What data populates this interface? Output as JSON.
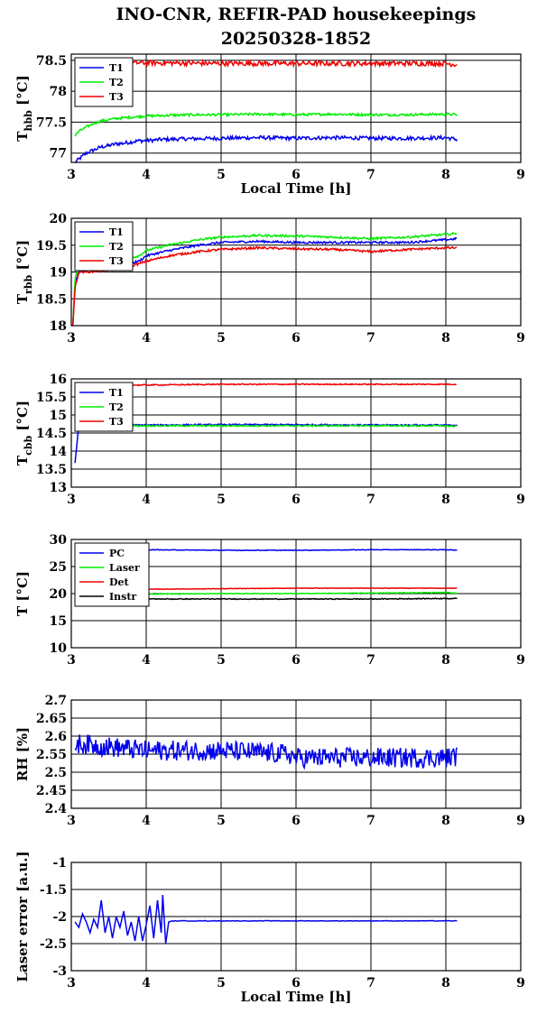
{
  "title": {
    "line1": "INO-CNR, REFIR-PAD housekeepings",
    "line2": "20250328-1852"
  },
  "chart_data": [
    {
      "type": "line",
      "ylabel": {
        "base": "T",
        "sub": "hbb",
        "unit": " [°C]"
      },
      "xlabel": "Local Time [h]",
      "xlim": [
        3,
        9
      ],
      "ylim": [
        76.85,
        78.6
      ],
      "xticks": [
        "3",
        "4",
        "5",
        "6",
        "7",
        "8",
        "9"
      ],
      "yticks": [
        {
          "v": 77,
          "label": "77"
        },
        {
          "v": 77.5,
          "label": "77.5"
        },
        {
          "v": 78,
          "label": "78"
        },
        {
          "v": 78.5,
          "label": "78.5"
        }
      ],
      "grid": true,
      "legend_position": "top-left",
      "series": [
        {
          "name": "T1",
          "color": "#0000ee",
          "x": [
            3.05,
            3.1,
            3.2,
            3.3,
            3.4,
            3.5,
            3.6,
            3.7,
            3.8,
            3.9,
            4.0,
            4.2,
            4.5,
            5.0,
            5.5,
            6.0,
            6.5,
            7.0,
            7.5,
            8.0,
            8.15
          ],
          "y": [
            76.85,
            76.9,
            77.0,
            77.05,
            77.1,
            77.12,
            77.15,
            77.16,
            77.18,
            77.2,
            77.2,
            77.22,
            77.23,
            77.24,
            77.25,
            77.24,
            77.25,
            77.24,
            77.24,
            77.25,
            77.22
          ],
          "noise": 0.03
        },
        {
          "name": "T2",
          "color": "#00ee00",
          "x": [
            3.05,
            3.1,
            3.2,
            3.3,
            3.4,
            3.5,
            3.6,
            3.7,
            3.8,
            4.0,
            4.3,
            4.6,
            5.0,
            5.5,
            6.0,
            6.5,
            7.0,
            7.5,
            8.0,
            8.15
          ],
          "y": [
            77.28,
            77.35,
            77.42,
            77.48,
            77.52,
            77.54,
            77.56,
            77.57,
            77.58,
            77.6,
            77.61,
            77.62,
            77.62,
            77.63,
            77.62,
            77.63,
            77.62,
            77.62,
            77.63,
            77.62
          ],
          "noise": 0.02
        },
        {
          "name": "T3",
          "color": "#ee0000",
          "x": [
            3.05,
            3.5,
            4.0,
            5.0,
            6.0,
            7.0,
            8.0,
            8.15
          ],
          "y": [
            78.45,
            78.45,
            78.46,
            78.45,
            78.45,
            78.45,
            78.45,
            78.43
          ],
          "noise": 0.04
        }
      ]
    },
    {
      "type": "line",
      "ylabel": {
        "base": "T",
        "sub": "rbb",
        "unit": " [°C]"
      },
      "xlabel": "",
      "xlim": [
        3,
        9
      ],
      "ylim": [
        18,
        20
      ],
      "xticks": [
        "3",
        "4",
        "5",
        "6",
        "7",
        "8",
        "9"
      ],
      "yticks": [
        {
          "v": 18,
          "label": "18"
        },
        {
          "v": 18.5,
          "label": "18.5"
        },
        {
          "v": 19,
          "label": "19"
        },
        {
          "v": 19.5,
          "label": "19.5"
        },
        {
          "v": 20,
          "label": "20"
        }
      ],
      "grid": true,
      "legend_position": "top-left",
      "series": [
        {
          "name": "T1",
          "color": "#0000ee",
          "x": [
            3.02,
            3.05,
            3.1,
            3.3,
            3.6,
            3.9,
            4.0,
            4.3,
            4.7,
            5.0,
            5.5,
            6.0,
            6.5,
            7.0,
            7.5,
            8.0,
            8.15
          ],
          "y": [
            18.0,
            18.8,
            19.0,
            19.05,
            19.1,
            19.2,
            19.3,
            19.4,
            19.5,
            19.55,
            19.57,
            19.55,
            19.55,
            19.55,
            19.55,
            19.6,
            19.62
          ],
          "noise": 0.02
        },
        {
          "name": "T2",
          "color": "#00ee00",
          "x": [
            3.02,
            3.05,
            3.1,
            3.3,
            3.6,
            3.9,
            4.0,
            4.3,
            4.7,
            5.0,
            5.5,
            6.0,
            6.5,
            7.0,
            7.5,
            8.0,
            8.15
          ],
          "y": [
            18.0,
            18.9,
            19.05,
            19.1,
            19.2,
            19.3,
            19.4,
            19.5,
            19.6,
            19.65,
            19.68,
            19.67,
            19.65,
            19.62,
            19.65,
            19.7,
            19.72
          ],
          "noise": 0.02
        },
        {
          "name": "T3",
          "color": "#ee0000",
          "x": [
            3.02,
            3.05,
            3.1,
            3.2,
            3.6,
            3.9,
            4.0,
            4.3,
            4.7,
            5.0,
            5.5,
            6.0,
            6.5,
            7.0,
            7.5,
            8.0,
            8.15
          ],
          "y": [
            18.0,
            18.7,
            19.0,
            19.0,
            19.05,
            19.15,
            19.2,
            19.3,
            19.38,
            19.42,
            19.45,
            19.43,
            19.42,
            19.38,
            19.42,
            19.45,
            19.45
          ],
          "noise": 0.02
        }
      ]
    },
    {
      "type": "line",
      "ylabel": {
        "base": "T",
        "sub": "cbb",
        "unit": " [°C]"
      },
      "xlabel": "",
      "xlim": [
        3,
        9
      ],
      "ylim": [
        13,
        16
      ],
      "xticks": [
        "3",
        "4",
        "5",
        "6",
        "7",
        "8",
        "9"
      ],
      "yticks": [
        {
          "v": 13,
          "label": "13"
        },
        {
          "v": 13.5,
          "label": "13.5"
        },
        {
          "v": 14,
          "label": "14"
        },
        {
          "v": 14.5,
          "label": "14.5"
        },
        {
          "v": 15,
          "label": "15"
        },
        {
          "v": 15.5,
          "label": "15.5"
        },
        {
          "v": 16,
          "label": "16"
        }
      ],
      "grid": true,
      "legend_position": "top-left",
      "series": [
        {
          "name": "T1",
          "color": "#0000ee",
          "x": [
            3.05,
            3.08,
            3.1,
            3.2,
            4.0,
            5.0,
            6.0,
            7.0,
            8.0,
            8.15
          ],
          "y": [
            13.65,
            14.3,
            14.65,
            14.72,
            14.72,
            14.73,
            14.73,
            14.72,
            14.72,
            14.7
          ],
          "noise": 0.02
        },
        {
          "name": "T2",
          "color": "#00ee00",
          "x": [
            3.1,
            3.2,
            4.0,
            5.0,
            6.0,
            7.0,
            8.0,
            8.15
          ],
          "y": [
            14.7,
            14.7,
            14.7,
            14.7,
            14.7,
            14.7,
            14.7,
            14.68
          ],
          "noise": 0.02
        },
        {
          "name": "T3",
          "color": "#ee0000",
          "x": [
            3.1,
            3.2,
            4.0,
            5.0,
            6.0,
            7.0,
            8.0,
            8.15
          ],
          "y": [
            15.8,
            15.82,
            15.83,
            15.85,
            15.85,
            15.85,
            15.85,
            15.85
          ],
          "noise": 0.015
        }
      ]
    },
    {
      "type": "line",
      "ylabel": {
        "base": "T [°C]",
        "sub": "",
        "unit": ""
      },
      "xlabel": "",
      "xlim": [
        3,
        9
      ],
      "ylim": [
        10,
        30
      ],
      "xticks": [
        "3",
        "4",
        "5",
        "6",
        "7",
        "8",
        "9"
      ],
      "yticks": [
        {
          "v": 10,
          "label": "10"
        },
        {
          "v": 15,
          "label": "15"
        },
        {
          "v": 20,
          "label": "20"
        },
        {
          "v": 25,
          "label": "25"
        },
        {
          "v": 30,
          "label": "30"
        }
      ],
      "grid": true,
      "legend_position": "top-left",
      "series": [
        {
          "name": "PC",
          "color": "#0000ee",
          "x": [
            3.05,
            4.0,
            5.0,
            6.0,
            7.0,
            8.0,
            8.15
          ],
          "y": [
            28.0,
            28.1,
            28.0,
            28.0,
            28.1,
            28.1,
            28.0
          ],
          "noise": 0.05
        },
        {
          "name": "Laser",
          "color": "#00ee00",
          "x": [
            3.05,
            4.0,
            5.0,
            6.0,
            7.0,
            8.0,
            8.15
          ],
          "y": [
            19.8,
            19.9,
            20.0,
            20.0,
            20.1,
            20.2,
            20.1
          ],
          "noise": 0.05
        },
        {
          "name": "Det",
          "color": "#ee0000",
          "x": [
            3.05,
            4.0,
            5.0,
            6.0,
            7.0,
            8.0,
            8.15
          ],
          "y": [
            20.7,
            20.8,
            20.9,
            21.0,
            21.0,
            21.0,
            21.0
          ],
          "noise": 0.04
        },
        {
          "name": "Instr",
          "color": "#000000",
          "x": [
            3.05,
            4.0,
            5.0,
            6.0,
            7.0,
            8.0,
            8.15
          ],
          "y": [
            19.0,
            19.0,
            19.0,
            19.0,
            19.0,
            19.1,
            19.1
          ],
          "noise": 0.08
        }
      ]
    },
    {
      "type": "line",
      "ylabel": {
        "base": "RH [%]",
        "sub": "",
        "unit": ""
      },
      "xlabel": "",
      "xlim": [
        3,
        9
      ],
      "ylim": [
        2.4,
        2.7
      ],
      "xticks": [
        "3",
        "4",
        "5",
        "6",
        "7",
        "8",
        "9"
      ],
      "yticks": [
        {
          "v": 2.4,
          "label": "2.4"
        },
        {
          "v": 2.45,
          "label": "2.45"
        },
        {
          "v": 2.5,
          "label": "2.5"
        },
        {
          "v": 2.55,
          "label": "2.55"
        },
        {
          "v": 2.6,
          "label": "2.6"
        },
        {
          "v": 2.65,
          "label": "2.65"
        },
        {
          "v": 2.7,
          "label": "2.7"
        }
      ],
      "grid": true,
      "series": [
        {
          "name": "",
          "color": "#0000ee",
          "x": [
            3.05,
            4.0,
            5.0,
            5.9,
            6.0,
            7.0,
            7.2,
            8.0,
            8.15
          ],
          "y": [
            2.58,
            2.56,
            2.56,
            2.55,
            2.54,
            2.54,
            2.54,
            2.54,
            2.545
          ],
          "noise": 0.028
        }
      ]
    },
    {
      "type": "line",
      "ylabel": {
        "base": "Laser error [a.u.]",
        "sub": "",
        "unit": ""
      },
      "xlabel": "Local Time [h]",
      "xlim": [
        3,
        9
      ],
      "ylim": [
        -3,
        -1
      ],
      "xticks": [
        "3",
        "4",
        "5",
        "6",
        "7",
        "8",
        "9"
      ],
      "yticks": [
        {
          "v": -3,
          "label": "-3"
        },
        {
          "v": -2.5,
          "label": "-2.5"
        },
        {
          "v": -2,
          "label": "-2"
        },
        {
          "v": -1.5,
          "label": "-1.5"
        },
        {
          "v": -1,
          "label": "-1"
        }
      ],
      "grid": true,
      "series": [
        {
          "name": "",
          "color": "#0000ee",
          "x": [
            3.05,
            3.5,
            4.0,
            4.25,
            4.3,
            5.0,
            6.0,
            7.0,
            8.0,
            8.15
          ],
          "y": [
            -2.1,
            -2.1,
            -2.15,
            -2.05,
            -2.08,
            -2.08,
            -2.08,
            -2.08,
            -2.08,
            -2.08
          ],
          "noise": 0.0,
          "spikes": [
            [
              3.05,
              -2.1
            ],
            [
              3.1,
              -2.2
            ],
            [
              3.15,
              -1.95
            ],
            [
              3.2,
              -2.1
            ],
            [
              3.25,
              -2.3
            ],
            [
              3.3,
              -2.05
            ],
            [
              3.35,
              -2.2
            ],
            [
              3.4,
              -1.7
            ],
            [
              3.45,
              -2.3
            ],
            [
              3.5,
              -2.0
            ],
            [
              3.55,
              -2.4
            ],
            [
              3.6,
              -2.0
            ],
            [
              3.65,
              -2.2
            ],
            [
              3.7,
              -1.9
            ],
            [
              3.75,
              -2.35
            ],
            [
              3.8,
              -2.1
            ],
            [
              3.85,
              -2.45
            ],
            [
              3.9,
              -2.0
            ],
            [
              3.95,
              -2.45
            ],
            [
              4.0,
              -2.15
            ],
            [
              4.05,
              -1.8
            ],
            [
              4.1,
              -2.4
            ],
            [
              4.15,
              -1.7
            ],
            [
              4.2,
              -2.3
            ],
            [
              4.22,
              -1.6
            ],
            [
              4.26,
              -2.5
            ],
            [
              4.3,
              -2.1
            ],
            [
              4.35,
              -2.08
            ]
          ]
        }
      ]
    }
  ]
}
